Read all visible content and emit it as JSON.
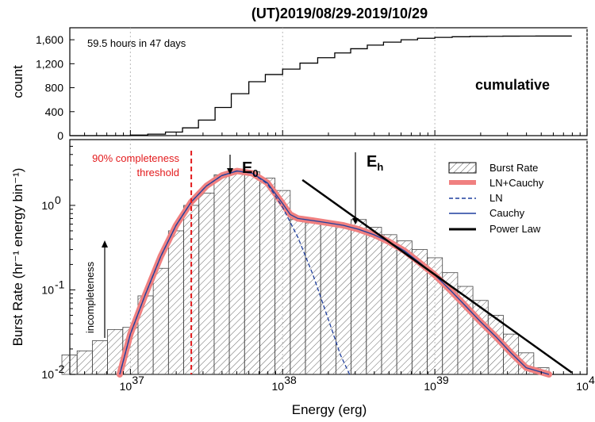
{
  "chart_data": [
    {
      "type": "line",
      "panel": "top",
      "title": "(UT)2019/08/29-2019/10/29",
      "ylabel": "count",
      "ylim": [
        0,
        1800
      ],
      "yticks": [
        "0",
        "400",
        "800",
        "1,200",
        "1,600"
      ],
      "annotation": "59.5 hours in 47 days",
      "label": "cumulative",
      "x": [
        1e+37,
        1.3e+37,
        1.7e+37,
        2.2e+37,
        2.8e+37,
        3.6e+37,
        4.6e+37,
        6e+37,
        7.7e+37,
        1e+38,
        1.3e+38,
        1.7e+38,
        2.2e+38,
        2.8e+38,
        3.6e+38,
        4.6e+38,
        6e+38,
        7.7e+38,
        1e+39,
        1.3e+39,
        1.7e+39,
        2.2e+39,
        2.8e+39,
        3.6e+39,
        4.6e+39,
        6e+39
      ],
      "values": [
        10,
        25,
        60,
        130,
        260,
        470,
        700,
        900,
        1020,
        1110,
        1210,
        1300,
        1380,
        1450,
        1510,
        1560,
        1600,
        1625,
        1640,
        1650,
        1655,
        1658,
        1660,
        1661,
        1662,
        1662
      ]
    },
    {
      "type": "bar",
      "panel": "bottom",
      "xlabel": "Energy (erg)",
      "ylabel": "Burst Rate (hr⁻¹ energy bin⁻¹)",
      "xlim": [
        4e+36,
        1e+40
      ],
      "ylim": [
        0.01,
        6
      ],
      "xscale": "log",
      "yscale": "log",
      "xticks": [
        "37",
        "38",
        "39",
        "40"
      ],
      "yticks": [
        "-2",
        "-1",
        "0"
      ],
      "bins_log10_energy": [
        36.6,
        36.7,
        36.8,
        36.9,
        37.0,
        37.1,
        37.2,
        37.3,
        37.4,
        37.5,
        37.6,
        37.7,
        37.8,
        37.9,
        38.0,
        38.1,
        38.2,
        38.3,
        38.4,
        38.5,
        38.6,
        38.7,
        38.8,
        38.9,
        39.0,
        39.1,
        39.2,
        39.3,
        39.4,
        39.5,
        39.6,
        39.7
      ],
      "values": [
        0.017,
        0.019,
        0.025,
        0.034,
        0.036,
        0.085,
        0.18,
        0.5,
        1.0,
        1.4,
        2.3,
        2.6,
        2.5,
        2.1,
        1.5,
        0.68,
        0.62,
        0.6,
        0.57,
        0.68,
        0.55,
        0.45,
        0.38,
        0.3,
        0.24,
        0.16,
        0.11,
        0.075,
        0.05,
        0.03,
        0.018,
        0.012
      ],
      "series": [
        {
          "name": "Burst Rate",
          "style": "hatched histogram"
        },
        {
          "name": "LN+Cauchy",
          "x_log10": [
            36.93,
            37.0,
            37.1,
            37.2,
            37.3,
            37.4,
            37.5,
            37.6,
            37.7,
            37.8,
            37.9,
            38.0,
            38.05,
            38.1,
            38.2,
            38.3,
            38.4,
            38.5,
            38.6,
            38.7,
            38.8,
            38.9,
            39.0,
            39.1,
            39.2,
            39.3,
            39.4,
            39.5,
            39.6,
            39.75
          ],
          "values": [
            0.01,
            0.03,
            0.09,
            0.25,
            0.58,
            1.1,
            1.7,
            2.25,
            2.55,
            2.4,
            1.85,
            1.05,
            0.78,
            0.7,
            0.66,
            0.62,
            0.58,
            0.52,
            0.45,
            0.37,
            0.29,
            0.21,
            0.15,
            0.1,
            0.065,
            0.042,
            0.028,
            0.018,
            0.012,
            0.01
          ]
        },
        {
          "name": "LN",
          "x_log10": [
            36.93,
            37.0,
            37.1,
            37.2,
            37.3,
            37.4,
            37.5,
            37.6,
            37.7,
            37.8,
            37.9,
            38.0,
            38.1,
            38.2,
            38.3,
            38.38,
            38.44
          ],
          "values": [
            0.01,
            0.03,
            0.09,
            0.25,
            0.58,
            1.1,
            1.7,
            2.25,
            2.55,
            2.4,
            1.8,
            0.95,
            0.42,
            0.15,
            0.045,
            0.017,
            0.01
          ]
        },
        {
          "name": "Cauchy",
          "x_log10": [
            36.93,
            37.0,
            37.1,
            37.2,
            37.3,
            37.4,
            37.5,
            37.6,
            37.7,
            37.8,
            37.9,
            38.0,
            38.05,
            38.1,
            38.2,
            38.3,
            38.4,
            38.5,
            38.6,
            38.7,
            38.8,
            38.9,
            39.0,
            39.1,
            39.2,
            39.3,
            39.4,
            39.5,
            39.6,
            39.75
          ],
          "values": [
            0.01,
            0.03,
            0.09,
            0.25,
            0.58,
            1.1,
            1.7,
            2.25,
            2.55,
            2.4,
            1.85,
            1.05,
            0.78,
            0.7,
            0.66,
            0.62,
            0.58,
            0.52,
            0.45,
            0.37,
            0.29,
            0.21,
            0.15,
            0.1,
            0.065,
            0.042,
            0.028,
            0.018,
            0.012,
            0.01
          ]
        },
        {
          "name": "Power Law",
          "x_log10": [
            38.13,
            39.9
          ],
          "values": [
            2.0,
            0.0105
          ]
        }
      ],
      "annotations": {
        "threshold_label_1": "90% completeness",
        "threshold_label_2": "threshold",
        "threshold_log10_energy": 37.4,
        "e0_label": "E",
        "e0_sub": "0",
        "e0_log10_energy": 37.68,
        "eh_label": "E",
        "eh_sub": "h",
        "eh_log10_energy": 38.54,
        "incompleteness_label": "incompleteness"
      },
      "colors": {
        "fit": "#f08080",
        "line_blue": "#1f3f9e",
        "threshold": "#e31a1c",
        "hatch": "#555555"
      }
    }
  ]
}
